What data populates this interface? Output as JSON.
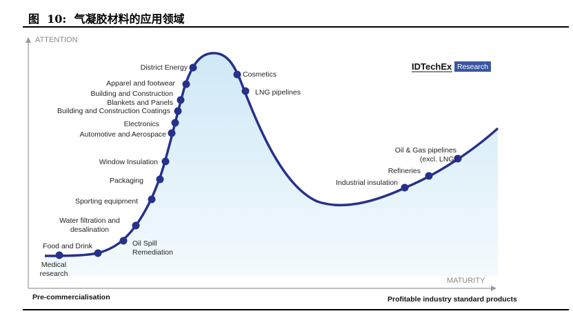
{
  "figure": {
    "title": "图  10:  气凝胶材料的应用领域"
  },
  "diagram": {
    "type": "hype-cycle",
    "y_axis_label": "ATTENTION",
    "x_axis_label": "MATURITY",
    "left_footer": "Pre-commercialisation",
    "right_footer": "Profitable industry standard products",
    "logo": {
      "brand": "IDTechEx",
      "tag": "Research",
      "tag_color": "#3b56a0"
    },
    "curve_color": "#25318a",
    "fill_color": "#d6ecf8",
    "points": [
      {
        "lines": [
          "Medical",
          "research"
        ]
      },
      {
        "lines": [
          "Food and Drink"
        ]
      },
      {
        "lines": [
          "Oil Spill",
          "Remediation"
        ]
      },
      {
        "lines": [
          "Water filtration and",
          "desalination"
        ]
      },
      {
        "lines": [
          "Sporting equipment"
        ]
      },
      {
        "lines": [
          "Packaging"
        ]
      },
      {
        "lines": [
          "Window Insulation"
        ]
      },
      {
        "lines": [
          "Automotive and Aerospace"
        ]
      },
      {
        "lines": [
          "Electronics"
        ]
      },
      {
        "lines": [
          "Building and Construction Coatings"
        ]
      },
      {
        "lines": [
          "Building and Construction",
          "Blankets and Panels"
        ]
      },
      {
        "lines": [
          "Apparel and footwear"
        ]
      },
      {
        "lines": [
          "District Energy"
        ]
      },
      {
        "lines": [
          "Cosmetics"
        ]
      },
      {
        "lines": [
          "LNG pipelines"
        ]
      },
      {
        "lines": [
          "Industrial insulation"
        ]
      },
      {
        "lines": [
          "Refineries"
        ]
      },
      {
        "lines": [
          "Oil & Gas pipelines",
          "(excl. LNG)"
        ]
      }
    ]
  }
}
